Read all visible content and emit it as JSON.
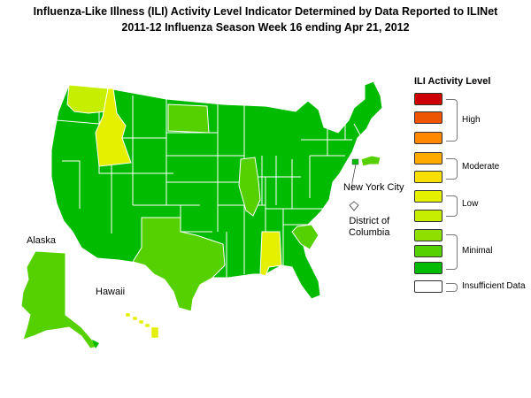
{
  "title_line1": "Influenza-Like Illness (ILI) Activity Level Indicator Determined by Data Reported to ILINet",
  "title_line2": "2011-12  Influenza Season Week  16 ending Apr 21, 2012",
  "labels": {
    "alaska": "Alaska",
    "hawaii": "Hawaii",
    "nyc": "New York City",
    "dc_line1": "District of",
    "dc_line2": "Columbia"
  },
  "legend": {
    "title": "ILI Activity Level",
    "levels": [
      {
        "color": "#cc0000"
      },
      {
        "color": "#ee5500"
      },
      {
        "color": "#ff8800"
      },
      {
        "color": "#ffaa00"
      },
      {
        "color": "#f7e000"
      },
      {
        "color": "#e5ef00"
      },
      {
        "color": "#c6ef00"
      },
      {
        "color": "#8ee000"
      },
      {
        "color": "#55d000"
      },
      {
        "color": "#00bb00"
      },
      {
        "color": "#ffffff"
      }
    ],
    "groups": {
      "high": "High",
      "moderate": "Moderate",
      "low": "Low",
      "minimal": "Minimal",
      "insufficient": "Insufficient Data"
    }
  },
  "state_activity": {
    "WA": "low",
    "ID": "low",
    "AL": "low",
    "HI": "low",
    "ND": "minimal-9",
    "IL": "minimal-9",
    "TX": "minimal-9",
    "SC": "minimal-9",
    "AK": "minimal-9",
    "MA": "minimal-9",
    "other": "minimal-10"
  }
}
